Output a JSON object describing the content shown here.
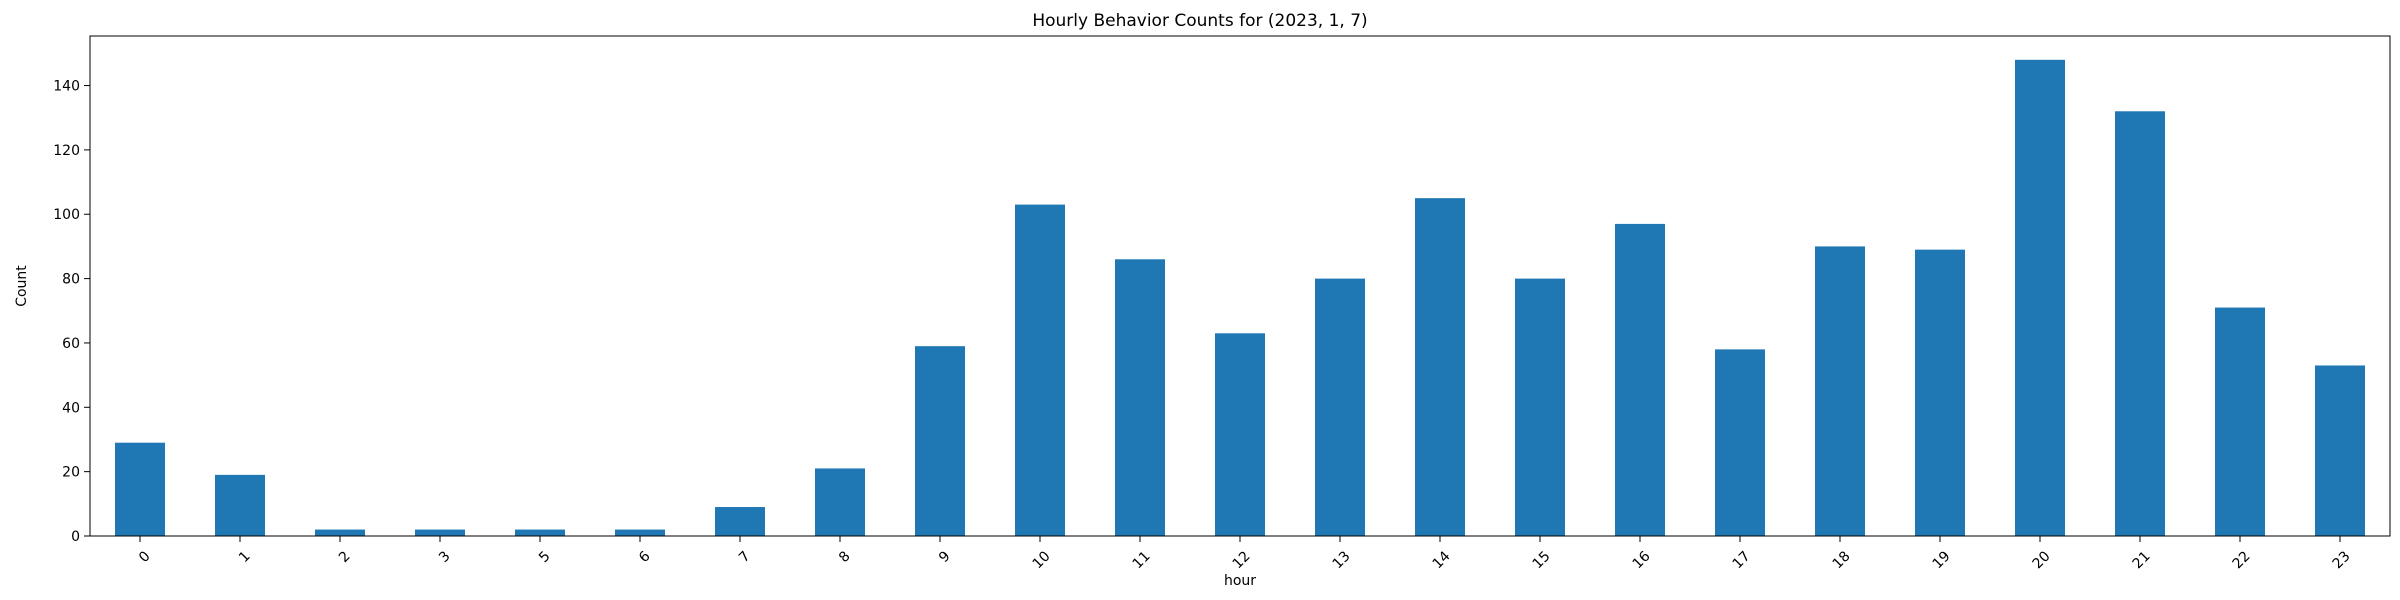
{
  "chart_data": {
    "type": "bar",
    "title": "Hourly Behavior Counts for (2023, 1, 7)",
    "xlabel": "hour",
    "ylabel": "Count",
    "categories": [
      "0",
      "1",
      "2",
      "3",
      "5",
      "6",
      "7",
      "8",
      "9",
      "10",
      "11",
      "12",
      "13",
      "14",
      "15",
      "16",
      "17",
      "18",
      "19",
      "20",
      "21",
      "22",
      "23"
    ],
    "values": [
      29,
      19,
      2,
      2,
      2,
      2,
      9,
      21,
      59,
      103,
      86,
      63,
      80,
      105,
      80,
      97,
      58,
      90,
      89,
      148,
      132,
      71,
      53
    ],
    "ylim": [
      0,
      155.4
    ],
    "yticks": [
      0,
      20,
      40,
      60,
      80,
      100,
      120,
      140
    ],
    "bar_color": "#1f77b4",
    "grid": false,
    "xtick_rotation_deg": 45
  }
}
